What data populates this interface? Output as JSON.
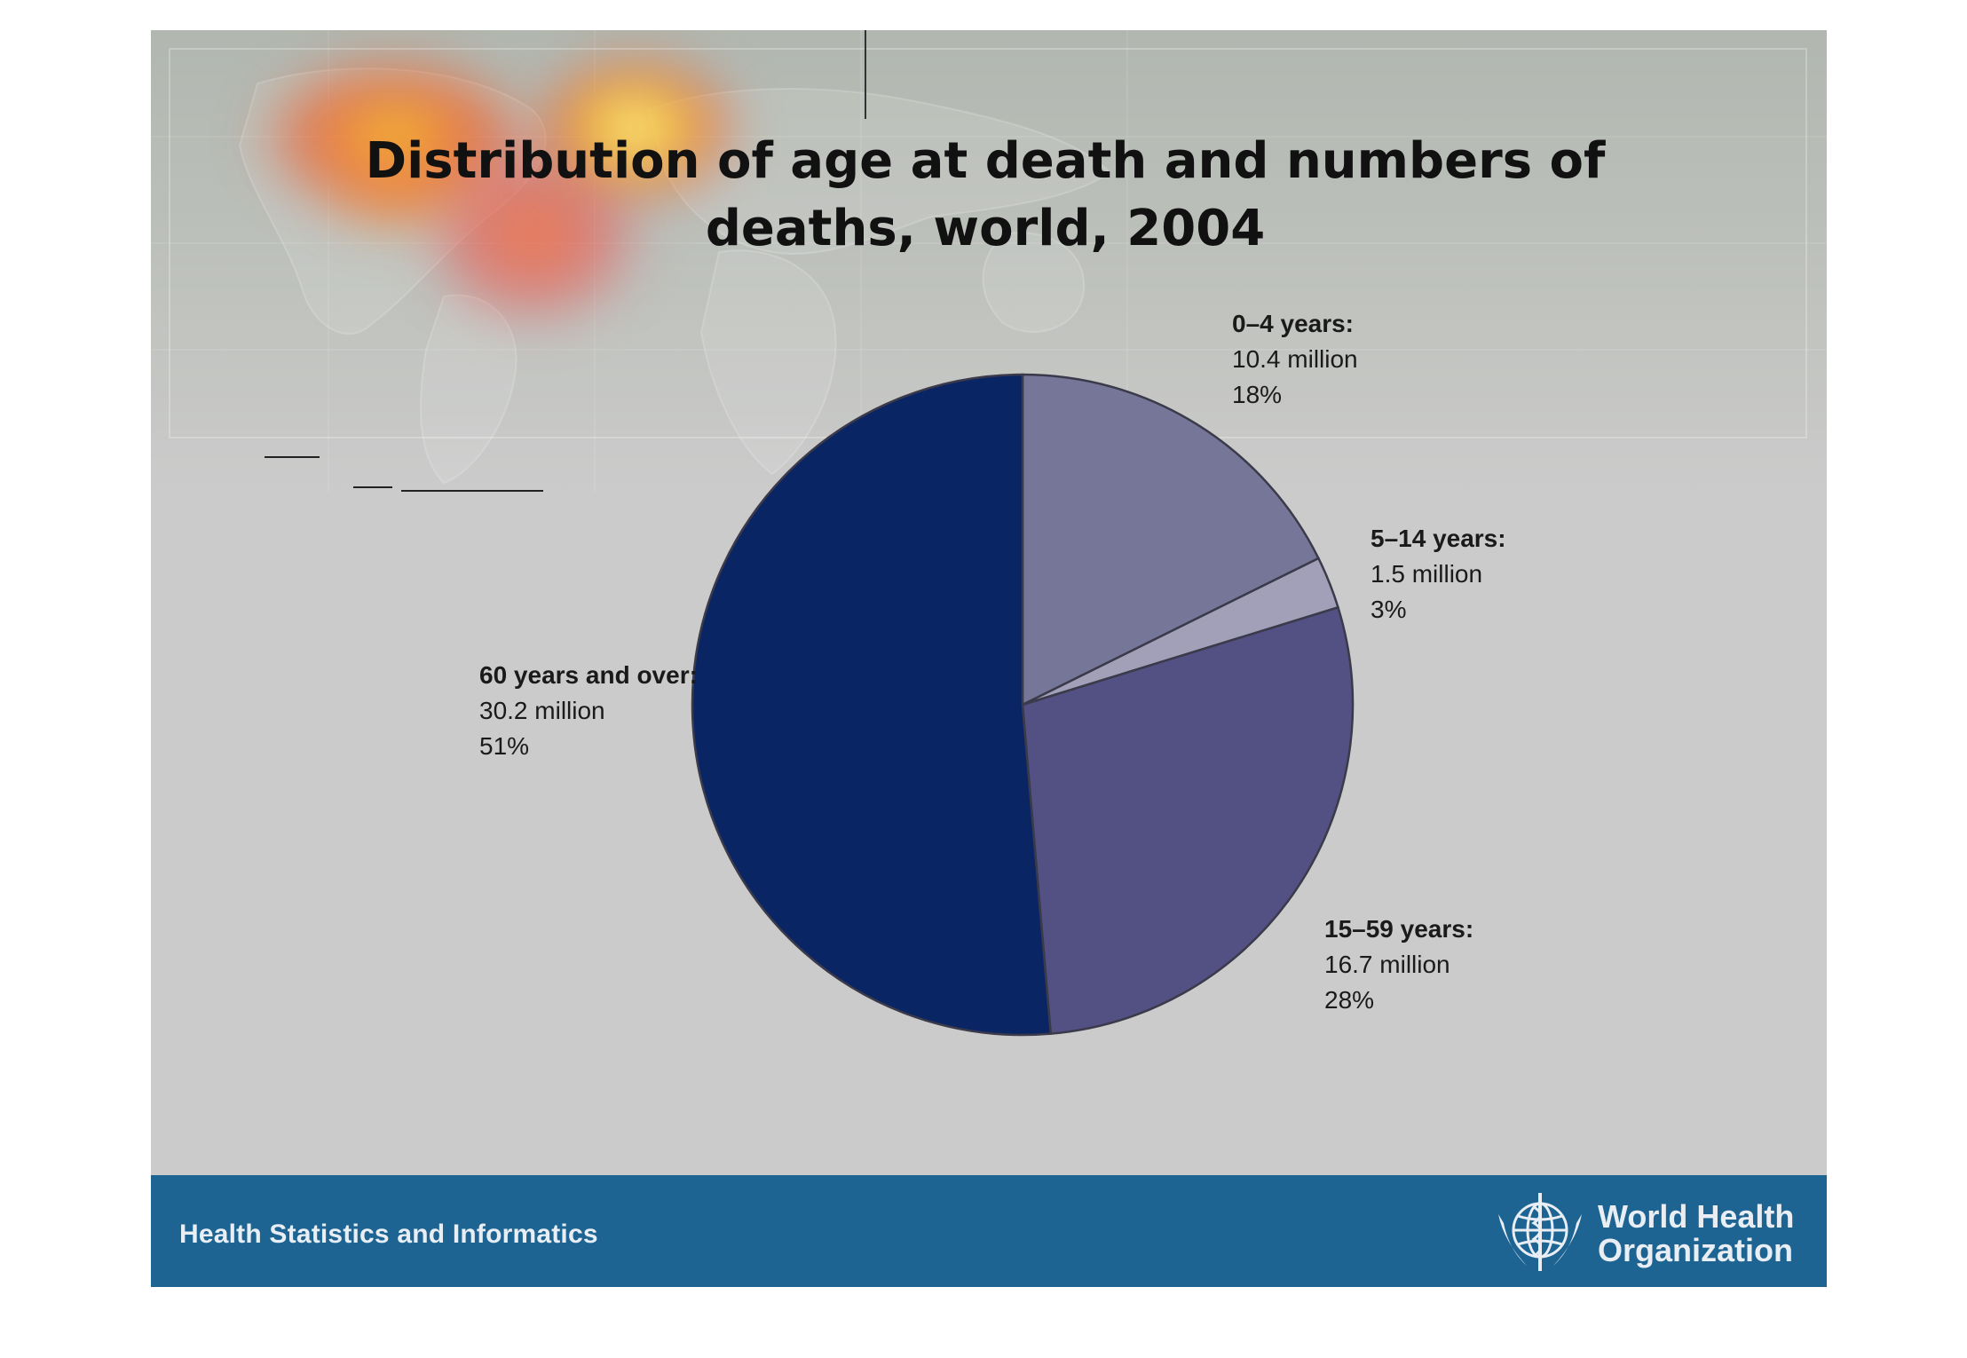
{
  "footer": {
    "left_text": "Health Statistics and Informatics",
    "org_line1": "World Health",
    "org_line2": "Organization"
  },
  "chart_data": {
    "type": "pie",
    "title": "Distribution of age at death and numbers of deaths, world, 2004",
    "title_line1": "Distribution of age at death and numbers of",
    "title_line2": "deaths, world, 2004",
    "start_angle_deg": 0,
    "direction": "clockwise",
    "slices": [
      {
        "name": "0–4 years:",
        "value_label": "10.4 million",
        "percent_label": "18%",
        "value": 10.4,
        "percent": 18,
        "color": "#767699"
      },
      {
        "name": "5–14 years:",
        "value_label": "1.5 million",
        "percent_label": "3%",
        "value": 1.5,
        "percent": 3,
        "color": "#a1a0b8"
      },
      {
        "name": "15–59 years:",
        "value_label": "16.7 million",
        "percent_label": "28%",
        "value": 16.7,
        "percent": 28,
        "color": "#535183"
      },
      {
        "name": "60 years and over:",
        "value_label": "30.2 million",
        "percent_label": "51%",
        "value": 30.2,
        "percent": 51,
        "color": "#0a2564"
      }
    ],
    "legend": "none"
  }
}
